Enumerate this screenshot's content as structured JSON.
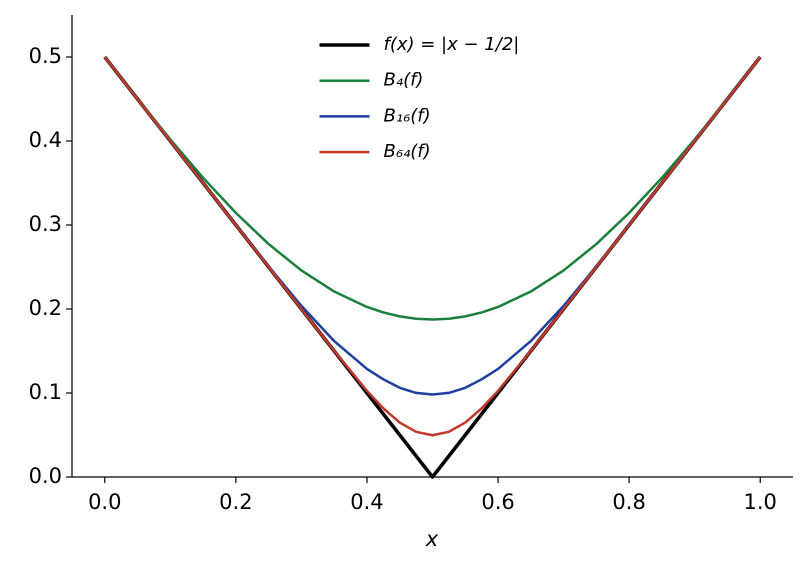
{
  "chart_data": {
    "type": "line",
    "xlabel": "x",
    "x": [
      0,
      0.05,
      0.1,
      0.15,
      0.2,
      0.25,
      0.3,
      0.35,
      0.4,
      0.425,
      0.45,
      0.475,
      0.5,
      0.525,
      0.55,
      0.575,
      0.6,
      0.65,
      0.7,
      0.75,
      0.8,
      0.85,
      0.9,
      0.95,
      1
    ],
    "series": [
      {
        "name": "f(x) = |x − 1/2|",
        "color": "#000000",
        "width": 3.5,
        "values": [
          0.5,
          0.45,
          0.4,
          0.35,
          0.3,
          0.25,
          0.2,
          0.15,
          0.1,
          0.075,
          0.05,
          0.025,
          0,
          0.025,
          0.05,
          0.075,
          0.1,
          0.15,
          0.2,
          0.25,
          0.3,
          0.35,
          0.4,
          0.45,
          0.5
        ]
      },
      {
        "name": "B₄(f)",
        "color": "#1a7f3c",
        "width": 2.5,
        "values": [
          0.5,
          0.4503,
          0.4019,
          0.3562,
          0.3144,
          0.2773,
          0.2459,
          0.2208,
          0.2024,
          0.1959,
          0.1912,
          0.1884,
          0.1875,
          0.1884,
          0.1912,
          0.1959,
          0.2024,
          0.2208,
          0.2459,
          0.2773,
          0.3144,
          0.3562,
          0.4019,
          0.4503,
          0.5
        ]
      },
      {
        "name": "B₁₆(f)",
        "color": "#1f3fa0",
        "width": 2.5,
        "values": [
          0.5,
          0.45,
          0.4,
          0.35,
          0.3001,
          0.2508,
          0.2037,
          0.1618,
          0.1286,
          0.1163,
          0.1062,
          0.1001,
          0.0982,
          0.1001,
          0.1062,
          0.1163,
          0.1286,
          0.1618,
          0.2037,
          0.2508,
          0.3001,
          0.35,
          0.4,
          0.45,
          0.5
        ]
      },
      {
        "name": "B₆₄(f)",
        "color": "#c0392b",
        "width": 2.5,
        "values": [
          0.5,
          0.45,
          0.4,
          0.35,
          0.3,
          0.25,
          0.2,
          0.1502,
          0.1026,
          0.0817,
          0.0648,
          0.0538,
          0.0497,
          0.0538,
          0.0648,
          0.0817,
          0.1026,
          0.1502,
          0.2,
          0.25,
          0.3,
          0.35,
          0.4,
          0.45,
          0.5
        ]
      }
    ],
    "xlim": [
      -0.05,
      1.05
    ],
    "ylim": [
      0,
      0.55
    ],
    "xticks": [
      {
        "value": 0,
        "label": "0.0"
      },
      {
        "value": 0.2,
        "label": "0.2"
      },
      {
        "value": 0.4,
        "label": "0.4"
      },
      {
        "value": 0.6,
        "label": "0.6"
      },
      {
        "value": 0.8,
        "label": "0.8"
      },
      {
        "value": 1,
        "label": "1.0"
      }
    ],
    "yticks": [
      {
        "value": 0,
        "label": "0.0"
      },
      {
        "value": 0.1,
        "label": "0.1"
      },
      {
        "value": 0.2,
        "label": "0.2"
      },
      {
        "value": 0.3,
        "label": "0.3"
      },
      {
        "value": 0.4,
        "label": "0.4"
      },
      {
        "value": 0.5,
        "label": "0.5"
      }
    ],
    "grid": false,
    "legend": "upper center"
  }
}
